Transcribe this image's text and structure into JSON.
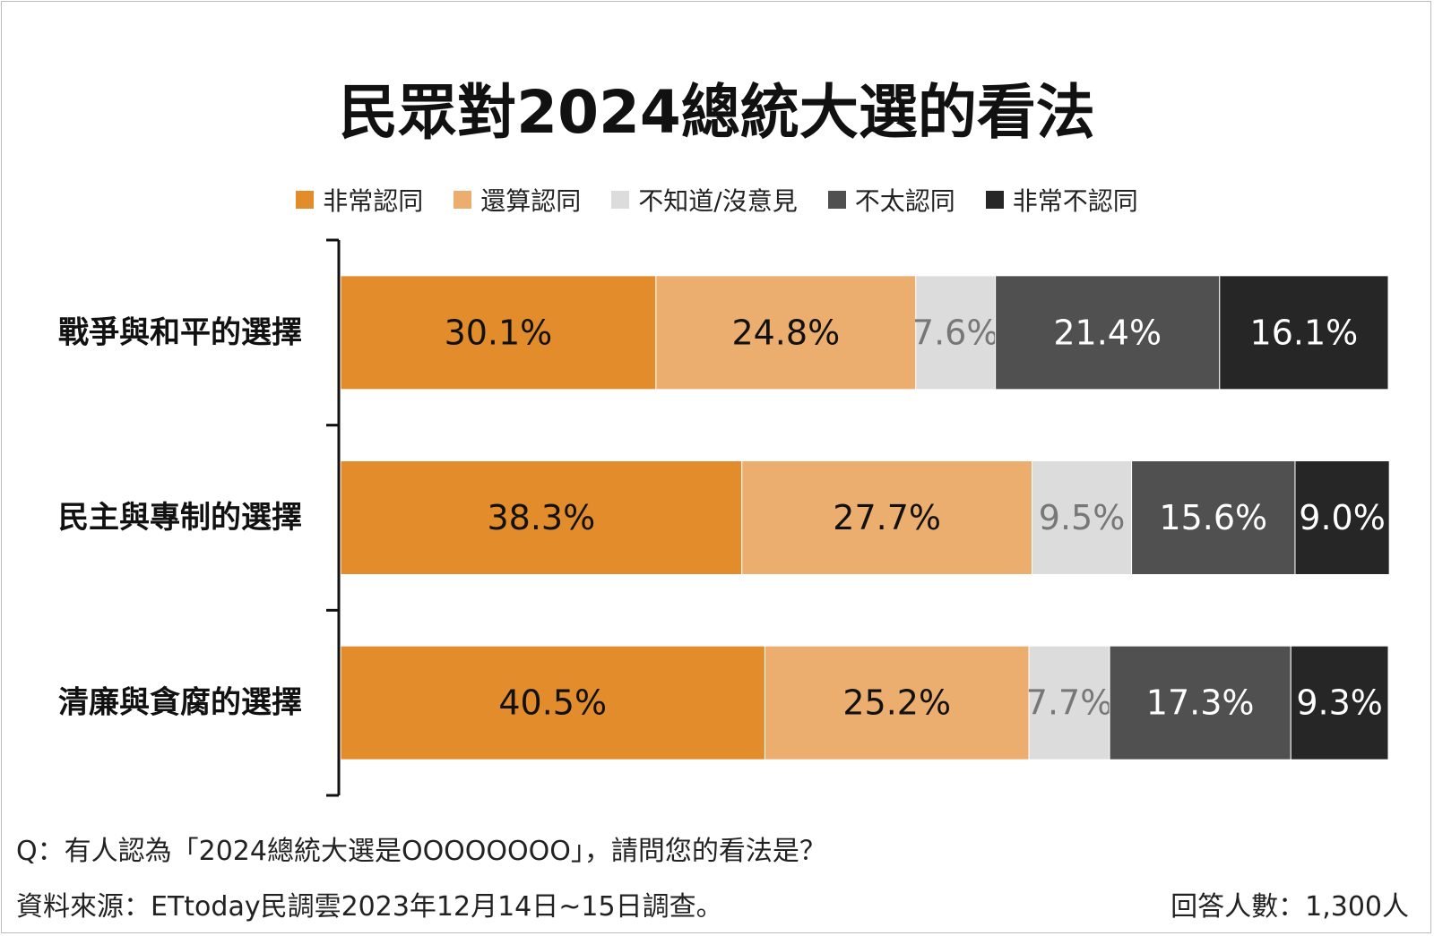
{
  "chart_data": {
    "type": "bar",
    "orientation": "horizontal",
    "stacked": true,
    "title": "民眾對2024總統大選的看法",
    "categories": [
      "戰爭與和平的選擇",
      "民主與專制的選擇",
      "清廉與貪腐的選擇"
    ],
    "series": [
      {
        "name": "非常認同",
        "color": "#e28c2c",
        "label_color": "#111111",
        "values": [
          30.1,
          38.3,
          40.5
        ],
        "labels": [
          "30.1%",
          "38.3%",
          "40.5%"
        ]
      },
      {
        "name": "還算認同",
        "color": "#ecae6e",
        "label_color": "#111111",
        "values": [
          24.8,
          27.7,
          25.2
        ],
        "labels": [
          "24.8%",
          "27.7%",
          "25.2%"
        ]
      },
      {
        "name": "不知道/沒意見",
        "color": "#dcdcdc",
        "label_color": "#777777",
        "values": [
          7.6,
          9.5,
          7.7
        ],
        "labels": [
          "7.6%",
          "9.5%",
          "7.7%"
        ]
      },
      {
        "name": "不太認同",
        "color": "#505050",
        "label_color": "#ffffff",
        "values": [
          21.4,
          15.6,
          17.3
        ],
        "labels": [
          "21.4%",
          "15.6%",
          "17.3%"
        ]
      },
      {
        "name": "非常不認同",
        "color": "#262626",
        "label_color": "#ffffff",
        "values": [
          16.1,
          9.0,
          9.3
        ],
        "labels": [
          "16.1%",
          "9.0%",
          "9.3%"
        ]
      }
    ],
    "xlim": [
      0,
      100
    ],
    "legend_position": "top-center",
    "grid": false
  },
  "footer": {
    "question": "Q：有人認為「2024總統大選是OOOOOOOO」，請問您的看法是？",
    "source": "資料來源：ETtoday民調雲2023年12月14日~15日調查。",
    "sample": "回答人數：1,300人"
  }
}
